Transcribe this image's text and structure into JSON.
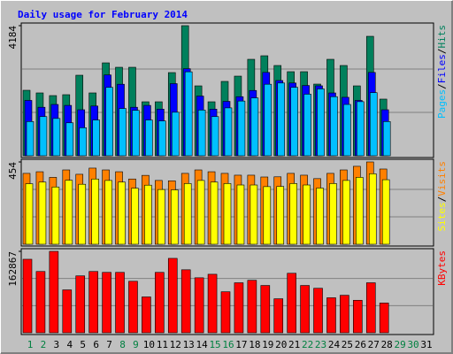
{
  "chart_data": {
    "type": "bar",
    "title": "Daily usage for February 2014",
    "title_color": "#0000ff",
    "separator": "/",
    "categories": [
      "1",
      "2",
      "3",
      "4",
      "5",
      "6",
      "7",
      "8",
      "9",
      "10",
      "11",
      "12",
      "13",
      "14",
      "15",
      "16",
      "17",
      "18",
      "19",
      "20",
      "21",
      "22",
      "23",
      "24",
      "25",
      "26",
      "27",
      "28",
      "29",
      "30",
      "31"
    ],
    "category_colors": [
      "#008040",
      "#008040",
      "#000000",
      "#000000",
      "#000000",
      "#000000",
      "#000000",
      "#008040",
      "#008040",
      "#000000",
      "#000000",
      "#000000",
      "#000000",
      "#000000",
      "#008040",
      "#008040",
      "#000000",
      "#000000",
      "#000000",
      "#000000",
      "#000000",
      "#008040",
      "#008040",
      "#000000",
      "#000000",
      "#000000",
      "#000000",
      "#000000",
      "#008040",
      "#008040",
      "#000000"
    ],
    "panels": [
      {
        "ylim": [
          0,
          4184
        ],
        "yticks": [
          4184
        ],
        "grid_divisions": 3,
        "series": [
          {
            "name": "Hits",
            "color": "#00805c",
            "values": [
              2106,
              2021,
              1935,
              1964,
              2590,
              2021,
              2988,
              2846,
              2846,
              1736,
              1736,
              2675,
              4184,
              2248,
              1736,
              2391,
              2561,
              3102,
              3216,
              2903,
              2704,
              2704,
              2305,
              3102,
              2903,
              2248,
              3842,
              1822,
              null,
              null,
              null
            ]
          },
          {
            "name": "Files",
            "color": "#0000ff",
            "values": [
              1780,
              1560,
              1650,
              1620,
              1480,
              1600,
              2600,
              2300,
              1560,
              1620,
              1500,
              2320,
              2800,
              1920,
              1500,
              1750,
              1900,
              2100,
              2680,
              2420,
              2340,
              2260,
              2250,
              2020,
              1880,
              1780,
              2680,
              1480,
              null,
              null,
              null
            ]
          },
          {
            "name": "Pages",
            "color": "#00c0ff",
            "values": [
              1100,
              1260,
              1200,
              1060,
              900,
              1150,
              2200,
              1520,
              1460,
              1150,
              1120,
              1400,
              2700,
              1470,
              1260,
              1540,
              1760,
              1860,
              2300,
              2340,
              2200,
              1980,
              2150,
              1900,
              1650,
              1740,
              2030,
              1100,
              null,
              null,
              null
            ]
          }
        ]
      },
      {
        "ylim": [
          0,
          454
        ],
        "yticks": [
          454
        ],
        "grid_divisions": 3,
        "series": [
          {
            "name": "Visits",
            "color": "#ff8000",
            "values": [
              391,
              400,
              369,
              410,
              386,
              420,
              410,
              400,
              360,
              380,
              352,
              350,
              391,
              410,
              400,
              391,
              381,
              381,
              371,
              372,
              391,
              381,
              362,
              391,
              410,
              430,
              454,
              415,
              null,
              null,
              null
            ]
          },
          {
            "name": "Sites",
            "color": "#ffff00",
            "values": [
              334,
              343,
              316,
              353,
              331,
              360,
              352,
              343,
              309,
              326,
              302,
              300,
              335,
              352,
              343,
              335,
              327,
              327,
              318,
              319,
              335,
              327,
              310,
              335,
              352,
              369,
              389,
              356,
              null,
              null,
              null
            ]
          }
        ]
      },
      {
        "ylim": [
          0,
          162867
        ],
        "yticks": [
          162867
        ],
        "grid_divisions": 3,
        "series": [
          {
            "name": "KBytes",
            "color": "#ff0000",
            "values": [
              147000,
              122600,
              162867,
              85800,
              113800,
              122600,
              120800,
              120800,
              103000,
              71700,
              120800,
              148800,
              126000,
              110000,
              117000,
              82000,
              100000,
              105000,
              94600,
              68000,
              119000,
              94600,
              89000,
              70000,
              75000,
              65000,
              100000,
              59500,
              null,
              null,
              null
            ]
          }
        ]
      }
    ]
  }
}
